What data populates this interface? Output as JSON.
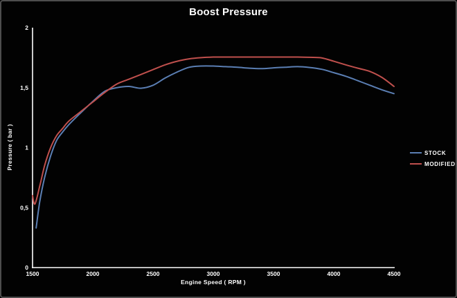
{
  "window": {
    "background": "#020202",
    "border_color": "#4d4d4d"
  },
  "chart_data": {
    "type": "line",
    "title": "Boost Pressure",
    "xlabel": "Engine Speed ( RPM )",
    "ylabel": "Pressure ( bar )",
    "xlim": [
      1500,
      4500
    ],
    "ylim": [
      0,
      2
    ],
    "grid": false,
    "legend_position": "right",
    "axis_color": "#ffffff",
    "text_color": "#ffffff",
    "x_ticks": [
      {
        "value": 1500,
        "label": "1500"
      },
      {
        "value": 2000,
        "label": "2000"
      },
      {
        "value": 2500,
        "label": "2500"
      },
      {
        "value": 3000,
        "label": "3000"
      },
      {
        "value": 3500,
        "label": "3500"
      },
      {
        "value": 4000,
        "label": "4000"
      },
      {
        "value": 4500,
        "label": "4500"
      }
    ],
    "y_ticks": [
      {
        "value": 0,
        "label": "0"
      },
      {
        "value": 0.5,
        "label": "0,5"
      },
      {
        "value": 1,
        "label": "1"
      },
      {
        "value": 1.5,
        "label": "1,5"
      },
      {
        "value": 2,
        "label": "2"
      }
    ],
    "series": [
      {
        "name": "STOCK",
        "color": "#5b7fb4",
        "x": [
          1530,
          1560,
          1600,
          1650,
          1700,
          1750,
          1800,
          1900,
          2000,
          2100,
          2200,
          2300,
          2400,
          2500,
          2600,
          2700,
          2800,
          2900,
          3000,
          3100,
          3200,
          3300,
          3400,
          3500,
          3600,
          3700,
          3800,
          3900,
          4000,
          4100,
          4200,
          4300,
          4400,
          4500
        ],
        "y": [
          0.33,
          0.55,
          0.75,
          0.93,
          1.06,
          1.13,
          1.19,
          1.29,
          1.385,
          1.47,
          1.5,
          1.51,
          1.495,
          1.52,
          1.58,
          1.63,
          1.67,
          1.68,
          1.68,
          1.675,
          1.67,
          1.662,
          1.658,
          1.665,
          1.67,
          1.675,
          1.668,
          1.653,
          1.625,
          1.595,
          1.558,
          1.52,
          1.482,
          1.45
        ]
      },
      {
        "name": "MODIFIED",
        "color": "#c0504d",
        "x": [
          1500,
          1520,
          1560,
          1600,
          1650,
          1700,
          1750,
          1800,
          1900,
          2000,
          2100,
          2200,
          2300,
          2400,
          2500,
          2600,
          2700,
          2800,
          2900,
          3000,
          3100,
          3200,
          3300,
          3400,
          3500,
          3600,
          3700,
          3800,
          3900,
          4000,
          4100,
          4200,
          4300,
          4400,
          4500
        ],
        "y": [
          0.6,
          0.53,
          0.68,
          0.85,
          1.0,
          1.1,
          1.16,
          1.22,
          1.3,
          1.38,
          1.46,
          1.53,
          1.57,
          1.61,
          1.65,
          1.69,
          1.72,
          1.74,
          1.75,
          1.755,
          1.755,
          1.755,
          1.755,
          1.755,
          1.755,
          1.755,
          1.755,
          1.753,
          1.748,
          1.72,
          1.69,
          1.662,
          1.635,
          1.585,
          1.51
        ]
      }
    ]
  }
}
